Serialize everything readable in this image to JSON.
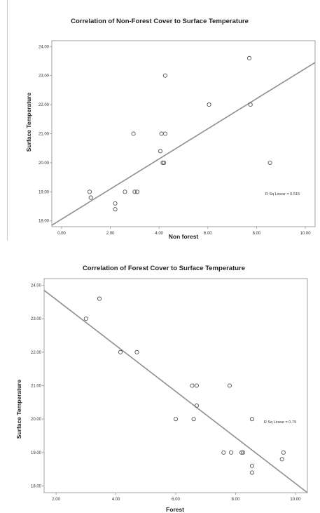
{
  "chart_data": [
    {
      "type": "scatter",
      "title": "Correlation of Non-Forest Cover to Surface Temperature",
      "xlabel": "Non forest",
      "ylabel": "Surface Temperature",
      "xlim": [
        -0.4,
        10.4
      ],
      "ylim": [
        17.8,
        24.2
      ],
      "x_ticks": [
        "0.00",
        "2.00",
        "4.00",
        "6.00",
        "8.00",
        "10.00"
      ],
      "y_ticks": [
        "18.00",
        "19.00",
        "20.00",
        "21.00",
        "22.00",
        "23.00",
        "24.00"
      ],
      "grid": false,
      "fit_line": [
        [
          -0.4,
          17.85
        ],
        [
          10.4,
          23.45
        ]
      ],
      "annotation": "R Sq Linear = 0.515",
      "points": [
        {
          "x": 1.15,
          "y": 19.0
        },
        {
          "x": 1.2,
          "y": 18.8
        },
        {
          "x": 2.2,
          "y": 18.6
        },
        {
          "x": 2.2,
          "y": 18.4
        },
        {
          "x": 2.6,
          "y": 19.0
        },
        {
          "x": 2.95,
          "y": 21.0
        },
        {
          "x": 3.0,
          "y": 19.0
        },
        {
          "x": 3.1,
          "y": 19.0
        },
        {
          "x": 4.05,
          "y": 20.4
        },
        {
          "x": 4.1,
          "y": 21.0
        },
        {
          "x": 4.15,
          "y": 20.0
        },
        {
          "x": 4.2,
          "y": 20.0
        },
        {
          "x": 4.25,
          "y": 21.0
        },
        {
          "x": 4.25,
          "y": 23.0
        },
        {
          "x": 6.05,
          "y": 22.0
        },
        {
          "x": 7.7,
          "y": 23.6
        },
        {
          "x": 7.75,
          "y": 22.0
        },
        {
          "x": 8.55,
          "y": 20.0
        }
      ]
    },
    {
      "type": "scatter",
      "title": "Correlation of Forest Cover to Surface Temperature",
      "xlabel": "Forest",
      "ylabel": "Surface Temperature",
      "xlim": [
        1.6,
        10.4
      ],
      "ylim": [
        17.8,
        24.2
      ],
      "x_ticks": [
        "2.00",
        "4.00",
        "6.00",
        "8.00",
        "10.00"
      ],
      "y_ticks": [
        "18.00",
        "19.00",
        "20.00",
        "21.00",
        "22.00",
        "23.00",
        "24.00"
      ],
      "grid": false,
      "fit_line": [
        [
          1.6,
          23.85
        ],
        [
          10.4,
          17.8
        ]
      ],
      "annotation": "R Sq Linear = 0.79",
      "points": [
        {
          "x": 3.0,
          "y": 23.0
        },
        {
          "x": 3.45,
          "y": 23.6
        },
        {
          "x": 4.15,
          "y": 22.0
        },
        {
          "x": 4.7,
          "y": 22.0
        },
        {
          "x": 6.0,
          "y": 20.0
        },
        {
          "x": 6.55,
          "y": 21.0
        },
        {
          "x": 6.6,
          "y": 20.0
        },
        {
          "x": 6.7,
          "y": 21.0
        },
        {
          "x": 6.7,
          "y": 20.4
        },
        {
          "x": 7.6,
          "y": 19.0
        },
        {
          "x": 7.8,
          "y": 21.0
        },
        {
          "x": 7.85,
          "y": 19.0
        },
        {
          "x": 8.2,
          "y": 19.0
        },
        {
          "x": 8.25,
          "y": 19.0
        },
        {
          "x": 8.55,
          "y": 20.0
        },
        {
          "x": 8.55,
          "y": 18.6
        },
        {
          "x": 8.55,
          "y": 18.4
        },
        {
          "x": 9.55,
          "y": 18.8
        },
        {
          "x": 9.6,
          "y": 19.0
        }
      ]
    }
  ]
}
